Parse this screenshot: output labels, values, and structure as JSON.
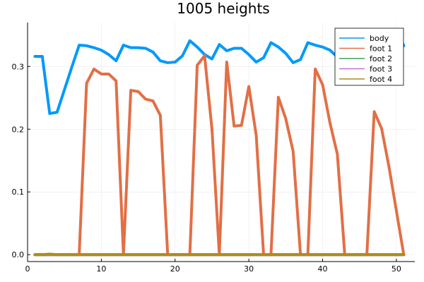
{
  "chart_data": {
    "type": "line",
    "title": "1005 heights",
    "xlabel": "",
    "ylabel": "",
    "xlim": [
      0,
      52.5
    ],
    "ylim": [
      -0.011,
      0.37
    ],
    "xticks": [
      0,
      10,
      20,
      30,
      40,
      50
    ],
    "yticks": [
      0.0,
      0.1,
      0.2,
      0.3
    ],
    "ytick_labels": [
      "0.0",
      "0.1",
      "0.2",
      "0.3"
    ],
    "grid": true,
    "legend_position": "top-right",
    "x": [
      1,
      2,
      3,
      4,
      5,
      6,
      7,
      8,
      9,
      10,
      11,
      12,
      13,
      14,
      15,
      16,
      17,
      18,
      19,
      20,
      21,
      22,
      23,
      24,
      25,
      26,
      27,
      28,
      29,
      30,
      31,
      32,
      33,
      34,
      35,
      36,
      37,
      38,
      39,
      40,
      41,
      42,
      43,
      44,
      45,
      46,
      47,
      48,
      49,
      50,
      51
    ],
    "series": [
      {
        "name": "body",
        "color": "#009af9",
        "values": [
          0.316,
          0.316,
          0.225,
          0.227,
          0.263,
          0.299,
          0.334,
          0.333,
          0.33,
          0.326,
          0.319,
          0.309,
          0.334,
          0.33,
          0.33,
          0.329,
          0.323,
          0.309,
          0.306,
          0.307,
          0.317,
          0.341,
          0.331,
          0.319,
          0.312,
          0.335,
          0.325,
          0.329,
          0.329,
          0.319,
          0.307,
          0.314,
          0.338,
          0.331,
          0.321,
          0.306,
          0.311,
          0.338,
          0.334,
          0.331,
          0.326,
          0.315,
          0.305,
          0.32,
          0.325,
          0.31,
          0.305,
          0.324,
          0.343,
          0.358,
          0.333
        ]
      },
      {
        "name": "foot 1",
        "color": "#e26f46",
        "values": [
          0,
          0,
          0,
          0,
          0,
          0,
          0,
          0.273,
          0.296,
          0.288,
          0.288,
          0.277,
          0,
          0.262,
          0.26,
          0.248,
          0.245,
          0.222,
          0,
          0,
          0,
          0,
          0.302,
          0.317,
          0.2,
          0,
          0.307,
          0.205,
          0.206,
          0.268,
          0.19,
          0,
          0,
          0.251,
          0.217,
          0.165,
          0,
          0,
          0.296,
          0.271,
          0.21,
          0.16,
          0,
          0,
          0,
          0,
          0.228,
          0.201,
          0.14,
          0.07,
          0
        ]
      },
      {
        "name": "foot 2",
        "color": "#3ea44e",
        "values": [
          0,
          0,
          0,
          0,
          0,
          0,
          0,
          0,
          0,
          0,
          0,
          0,
          0,
          0,
          0,
          0,
          0,
          0,
          0,
          0,
          0,
          0,
          0,
          0,
          0,
          0,
          0,
          0,
          0,
          0,
          0,
          0,
          0,
          0,
          0,
          0,
          0,
          0,
          0,
          0,
          0,
          0,
          0,
          0,
          0,
          0,
          0,
          0,
          0,
          0,
          0
        ]
      },
      {
        "name": "foot 3",
        "color": "#c271d2",
        "values": [
          0,
          0,
          0,
          0,
          0,
          0,
          0,
          0,
          0,
          0,
          0,
          0,
          0,
          0,
          0,
          0,
          0,
          0,
          0,
          0,
          0,
          0,
          0,
          0,
          0,
          0,
          0,
          0,
          0,
          0,
          0,
          0,
          0,
          0,
          0,
          0,
          0,
          0,
          0,
          0,
          0,
          0,
          0,
          0,
          0,
          0,
          0,
          0,
          0,
          0,
          0
        ]
      },
      {
        "name": "foot 4",
        "color": "#ac8d18",
        "values": [
          0,
          0,
          0.001,
          0,
          0,
          0,
          0,
          0,
          0,
          0,
          0,
          0,
          0,
          0,
          0,
          0,
          0,
          0,
          0,
          0,
          0,
          0,
          0,
          0,
          0,
          0,
          0,
          0,
          0,
          0,
          0,
          0,
          0,
          0,
          0,
          0,
          0,
          0,
          0,
          0,
          0,
          0,
          0,
          0,
          0,
          0,
          0,
          0,
          0,
          0,
          0
        ]
      }
    ]
  }
}
